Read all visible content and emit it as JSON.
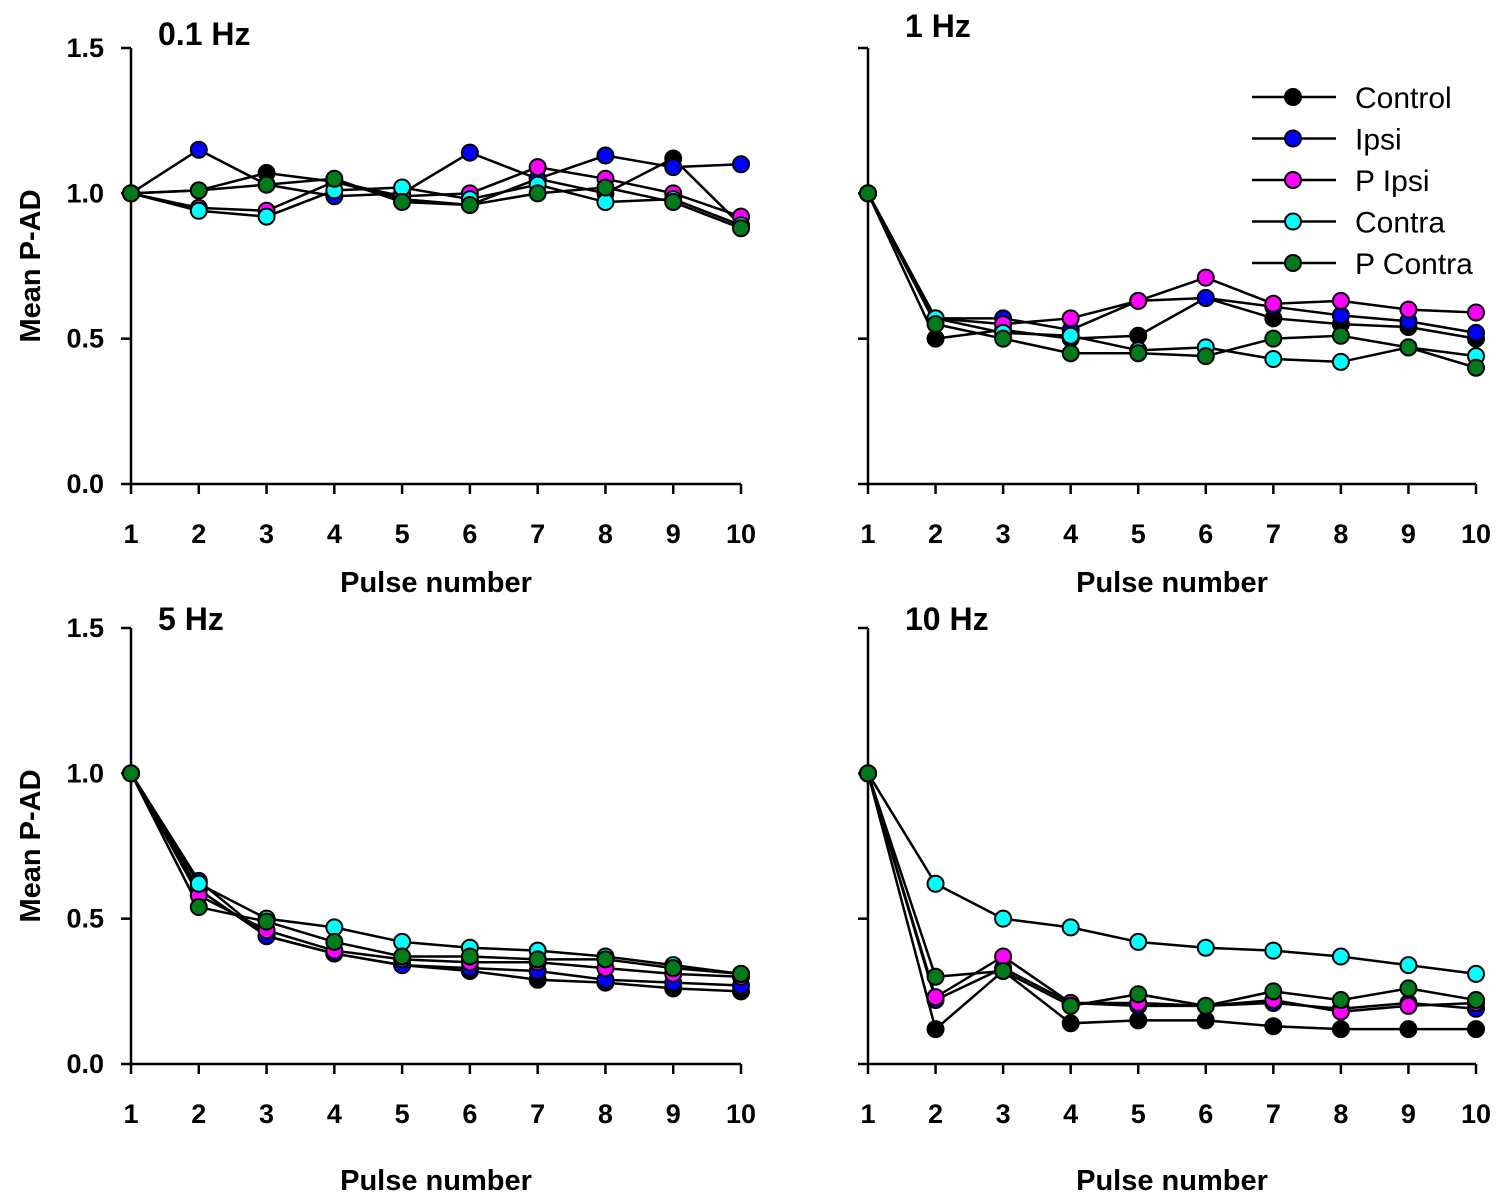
{
  "chart_data": {
    "type": "line",
    "legend": {
      "placement": "top-right of panel 2",
      "entries": [
        "Control",
        "Ipsi",
        "P Ipsi",
        "Contra",
        "P Contra"
      ]
    },
    "series_colors": {
      "Control": "#000000",
      "Ipsi": "#0000ff",
      "P Ipsi": "#ff00ff",
      "Contra": "#00ffff",
      "P Contra": "#007a1a"
    },
    "x": [
      1,
      2,
      3,
      4,
      5,
      6,
      7,
      8,
      9,
      10
    ],
    "xticks": [
      "1",
      "2",
      "3",
      "4",
      "5",
      "6",
      "7",
      "8",
      "9",
      "10"
    ],
    "yticks": [
      "0.0",
      "0.5",
      "1.0",
      "1.5"
    ],
    "ylim": [
      0,
      1.5
    ],
    "xlim": [
      1,
      10
    ],
    "grid": false,
    "panels": [
      {
        "title": "0.1 Hz",
        "xlabel": "Pulse number",
        "ylabel": "Mean P-AD",
        "series": [
          {
            "name": "Control",
            "values": [
              1,
              1.01,
              1.07,
              1.04,
              0.98,
              0.96,
              1.05,
              1.0,
              1.12,
              0.89
            ]
          },
          {
            "name": "Ipsi",
            "values": [
              1,
              1.15,
              1.03,
              0.99,
              1.0,
              1.14,
              1.05,
              1.13,
              1.09,
              1.1
            ]
          },
          {
            "name": "P Ipsi",
            "values": [
              1,
              0.95,
              0.94,
              1.04,
              0.99,
              1.0,
              1.09,
              1.05,
              1.0,
              0.92
            ]
          },
          {
            "name": "Contra",
            "values": [
              1,
              0.94,
              0.92,
              1.01,
              1.02,
              0.98,
              1.03,
              0.97,
              0.98,
              0.89
            ]
          },
          {
            "name": "P Contra",
            "values": [
              1,
              1.01,
              1.03,
              1.05,
              0.97,
              0.96,
              1.0,
              1.02,
              0.97,
              0.88
            ]
          }
        ]
      },
      {
        "title": "1 Hz",
        "xlabel": "Pulse number",
        "ylabel": "",
        "series": [
          {
            "name": "Control",
            "values": [
              1,
              0.5,
              0.53,
              0.5,
              0.51,
              0.64,
              0.57,
              0.55,
              0.54,
              0.5
            ]
          },
          {
            "name": "Ipsi",
            "values": [
              1,
              0.57,
              0.57,
              0.53,
              0.63,
              0.64,
              0.61,
              0.58,
              0.56,
              0.52
            ]
          },
          {
            "name": "P Ipsi",
            "values": [
              1,
              0.57,
              0.55,
              0.57,
              0.63,
              0.71,
              0.62,
              0.63,
              0.6,
              0.59
            ]
          },
          {
            "name": "Contra",
            "values": [
              1,
              0.57,
              0.52,
              0.51,
              0.46,
              0.47,
              0.43,
              0.42,
              0.47,
              0.44
            ]
          },
          {
            "name": "P Contra",
            "values": [
              1,
              0.55,
              0.5,
              0.45,
              0.45,
              0.44,
              0.5,
              0.51,
              0.47,
              0.4
            ]
          }
        ]
      },
      {
        "title": "5 Hz",
        "xlabel": "Pulse number",
        "ylabel": "Mean P-AD",
        "series": [
          {
            "name": "Control",
            "values": [
              1,
              0.6,
              0.44,
              0.38,
              0.34,
              0.32,
              0.29,
              0.28,
              0.26,
              0.25
            ]
          },
          {
            "name": "Ipsi",
            "values": [
              1,
              0.63,
              0.44,
              0.38,
              0.34,
              0.33,
              0.32,
              0.29,
              0.28,
              0.27
            ]
          },
          {
            "name": "P Ipsi",
            "values": [
              1,
              0.58,
              0.46,
              0.39,
              0.36,
              0.35,
              0.35,
              0.33,
              0.31,
              0.3
            ]
          },
          {
            "name": "Contra",
            "values": [
              1,
              0.62,
              0.5,
              0.47,
              0.42,
              0.4,
              0.39,
              0.37,
              0.34,
              0.31
            ]
          },
          {
            "name": "P Contra",
            "values": [
              1,
              0.54,
              0.49,
              0.42,
              0.37,
              0.37,
              0.36,
              0.36,
              0.33,
              0.31
            ]
          }
        ]
      },
      {
        "title": "10 Hz",
        "xlabel": "Pulse number",
        "ylabel": "",
        "series": [
          {
            "name": "Control",
            "values": [
              1,
              0.12,
              0.32,
              0.14,
              0.15,
              0.15,
              0.13,
              0.12,
              0.12,
              0.12
            ]
          },
          {
            "name": "Ipsi",
            "values": [
              1,
              0.22,
              0.33,
              0.21,
              0.2,
              0.2,
              0.21,
              0.19,
              0.21,
              0.19
            ]
          },
          {
            "name": "P Ipsi",
            "values": [
              1,
              0.23,
              0.37,
              0.21,
              0.21,
              0.2,
              0.22,
              0.18,
              0.2,
              0.21
            ]
          },
          {
            "name": "Contra",
            "values": [
              1,
              0.62,
              0.5,
              0.47,
              0.42,
              0.4,
              0.39,
              0.37,
              0.34,
              0.31
            ]
          },
          {
            "name": "P Contra",
            "values": [
              1,
              0.3,
              0.32,
              0.2,
              0.24,
              0.2,
              0.25,
              0.22,
              0.26,
              0.22
            ]
          }
        ]
      }
    ]
  }
}
